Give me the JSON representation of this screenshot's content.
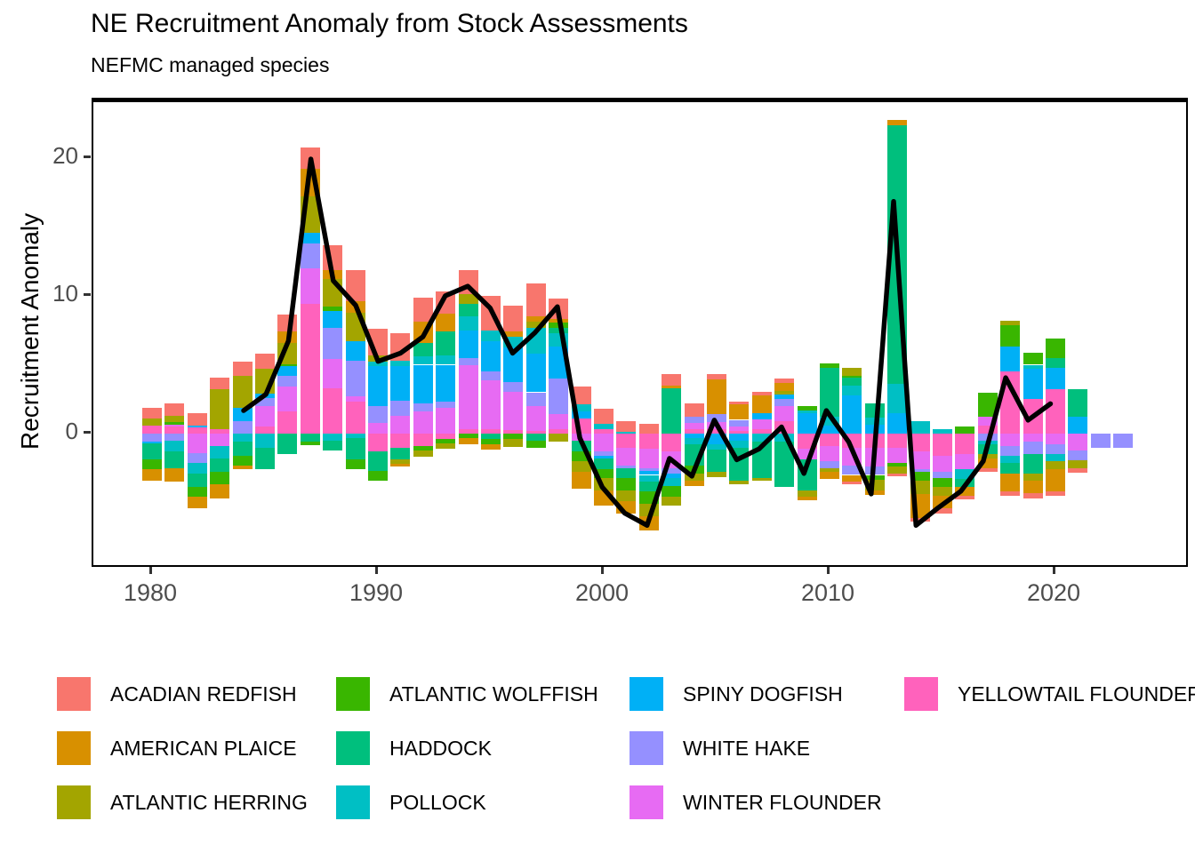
{
  "title": "NE Recruitment Anomaly from Stock Assessments",
  "subtitle": "NEFMC managed species",
  "y_axis": {
    "label": "Recruitment Anomaly",
    "ticks": [
      0,
      10,
      20
    ]
  },
  "x_axis": {
    "ticks": [
      1980,
      1990,
      2000,
      2010,
      2020
    ]
  },
  "legend": {
    "items": [
      {
        "label": "ACADIAN REDFISH",
        "color": "#F8766D"
      },
      {
        "label": "AMERICAN PLAICE",
        "color": "#D89000"
      },
      {
        "label": "ATLANTIC HERRING",
        "color": "#A3A500"
      },
      {
        "label": "ATLANTIC WOLFFISH",
        "color": "#39B600"
      },
      {
        "label": "HADDOCK",
        "color": "#00BF7D"
      },
      {
        "label": "POLLOCK",
        "color": "#00BFC4"
      },
      {
        "label": "SPINY DOGFISH",
        "color": "#00B0F6"
      },
      {
        "label": "WHITE HAKE",
        "color": "#9590FF"
      },
      {
        "label": "WINTER FLOUNDER",
        "color": "#E76BF3"
      },
      {
        "label": "YELLOWTAIL FLOUNDER",
        "color": "#FF62BC"
      }
    ]
  },
  "chart_data": {
    "type": "bar",
    "subtype": "stacked-diverging-with-line-overlay",
    "title": "NE Recruitment Anomaly from Stock Assessments",
    "xlabel": "",
    "ylabel": "Recruitment Anomaly",
    "xlim": [
      1977.4,
      2025.9
    ],
    "ylim": [
      -9.8,
      24.3
    ],
    "grid": false,
    "zero_line": true,
    "x": [
      1980,
      1981,
      1982,
      1983,
      1984,
      1985,
      1986,
      1987,
      1988,
      1989,
      1990,
      1991,
      1992,
      1993,
      1994,
      1995,
      1996,
      1997,
      1998,
      1999,
      2000,
      2001,
      2002,
      2003,
      2004,
      2005,
      2006,
      2007,
      2008,
      2009,
      2010,
      2011,
      2012,
      2013,
      2014,
      2015,
      2016,
      2017,
      2018,
      2019,
      2020,
      2021,
      2022,
      2023
    ],
    "series": [
      {
        "name": "ACADIAN REDFISH",
        "color": "#F8766D",
        "values": [
          0.8,
          0.9,
          0.9,
          0.8,
          1.0,
          1.1,
          1.2,
          1.6,
          1.8,
          2.3,
          1.9,
          2.0,
          1.8,
          1.6,
          1.8,
          2.5,
          1.9,
          2.4,
          1.45,
          1.3,
          1.1,
          0.8,
          0.7,
          0.8,
          1.0,
          0.35,
          0.25,
          0.25,
          0.3,
          0,
          0,
          -0.2,
          0,
          -0.2,
          -0.3,
          -0.4,
          -0.25,
          -0.25,
          -0.3,
          -0.4,
          -0.3,
          -0.35,
          0,
          0
        ]
      },
      {
        "name": "AMERICAN PLAICE",
        "color": "#D89000",
        "values": [
          -0.8,
          -1.0,
          -0.8,
          -1.0,
          -0.3,
          0,
          0.9,
          2.0,
          0.7,
          0.8,
          0,
          -0.2,
          1.5,
          1.3,
          -0.5,
          -0.4,
          0.35,
          0.4,
          0.3,
          -1.2,
          -1.1,
          -0.9,
          -1.0,
          0.2,
          -0.4,
          2.5,
          1.1,
          1.3,
          0.6,
          -0.3,
          -0.5,
          -0.5,
          -0.35,
          0.4,
          -1.7,
          -0.9,
          -0.6,
          -0.7,
          -1.3,
          -0.9,
          -1.6,
          0,
          0,
          0
        ]
      },
      {
        "name": "ATLANTIC HERRING",
        "color": "#A3A500",
        "values": [
          0.55,
          0.45,
          0,
          2.9,
          2.3,
          1.8,
          1.5,
          2.6,
          2.0,
          2.1,
          0.5,
          -0.3,
          -0.5,
          -0.4,
          0.7,
          0,
          -0.6,
          0.4,
          -0.6,
          -0.8,
          -0.9,
          -0.8,
          -0.9,
          -0.6,
          -0.5,
          -0.4,
          -0.3,
          -0.25,
          0.25,
          -0.45,
          -0.3,
          0.6,
          -0.75,
          -0.5,
          -1.0,
          -0.6,
          0,
          -0.3,
          0.3,
          -0.5,
          -0.6,
          -0.55,
          0,
          0
        ]
      },
      {
        "name": "ATLANTIC WOLFFISH",
        "color": "#39B600",
        "values": [
          -0.7,
          0.2,
          -0.7,
          -0.9,
          -0.7,
          0,
          0.15,
          -0.3,
          0.3,
          -0.7,
          -0.7,
          0,
          -0.3,
          -0.3,
          -0.3,
          -0.35,
          -0.4,
          -0.5,
          0.4,
          -0.7,
          -0.6,
          -0.9,
          -0.9,
          -0.8,
          -0.6,
          0,
          0,
          0,
          0,
          0.3,
          0.3,
          0.15,
          -0.35,
          -0.3,
          -0.6,
          -0.7,
          0.5,
          1.8,
          1.6,
          0.9,
          1.4,
          0,
          0,
          0
        ]
      },
      {
        "name": "HADDOCK",
        "color": "#00BF7D",
        "values": [
          -1.2,
          -1.2,
          -1.0,
          -1.0,
          -1.0,
          -1.6,
          -1.5,
          -0.55,
          -0.7,
          -1.6,
          -1.4,
          -0.9,
          1.0,
          1.7,
          0.9,
          -0.4,
          0,
          -0.5,
          0.35,
          -0.8,
          -0.8,
          -0.7,
          -0.7,
          3.3,
          -1.5,
          -1.6,
          -2.4,
          -2.6,
          -3.3,
          -2.2,
          3.6,
          0.55,
          1.05,
          18.8,
          0,
          0,
          -0.6,
          -0.7,
          -0.8,
          -1.4,
          0.7,
          2.0,
          0,
          0
        ]
      },
      {
        "name": "POLLOCK",
        "color": "#00BFC4",
        "values": [
          0,
          -0.8,
          -0.8,
          -0.9,
          -0.6,
          -1.0,
          0,
          0,
          -0.5,
          -0.3,
          0.3,
          0.4,
          0.6,
          0.7,
          1.0,
          0.8,
          0.8,
          1.9,
          1.0,
          0.5,
          0.35,
          0.1,
          -0.5,
          -0.6,
          -0.5,
          -0.4,
          -0.5,
          -0.6,
          -0.6,
          0.2,
          0.6,
          0.7,
          0.5,
          2.1,
          0.9,
          0.3,
          -0.7,
          -0.3,
          -0.5,
          0.3,
          -0.5,
          0,
          0,
          0
        ]
      },
      {
        "name": "SPINY DOGFISH",
        "color": "#00B0F6",
        "values": [
          -0.15,
          0,
          0.15,
          0,
          1.0,
          0.3,
          0.7,
          0.8,
          1.2,
          1.4,
          2.9,
          2.5,
          2.8,
          2.7,
          2.0,
          2.2,
          2.5,
          2.8,
          2.3,
          0.5,
          -0.2,
          0,
          -0.3,
          -0.3,
          -0.3,
          -0.75,
          -0.5,
          0.45,
          0.35,
          1.5,
          0.6,
          2.8,
          0.65,
          1.5,
          0,
          0,
          0,
          0,
          1.8,
          2.2,
          1.6,
          1.2,
          0,
          0
        ]
      },
      {
        "name": "WHITE HAKE",
        "color": "#9590FF",
        "values": [
          -0.55,
          -0.5,
          -0.7,
          0,
          0.9,
          0.6,
          0.8,
          1.8,
          2.3,
          2.6,
          1.2,
          1.1,
          0.6,
          0.4,
          0.5,
          0.6,
          0.7,
          1.0,
          2.55,
          0,
          -0.3,
          -0.2,
          -0.2,
          -0.4,
          0.4,
          0.6,
          0.5,
          0,
          0.5,
          0,
          -0.5,
          -0.7,
          -0.6,
          0,
          -0.2,
          -0.4,
          0,
          -0.5,
          -0.7,
          -0.9,
          -0.7,
          -0.75,
          -1.0,
          -1.0
        ]
      },
      {
        "name": "WINTER FLOUNDER",
        "color": "#E76BF3",
        "values": [
          0,
          0.15,
          -1.4,
          -0.9,
          0,
          1.5,
          1.8,
          2.6,
          2.1,
          0.4,
          0.8,
          1.3,
          1.6,
          1.9,
          4.7,
          3.6,
          2.8,
          1.8,
          1.15,
          -0.5,
          -1.3,
          -1.3,
          -1.4,
          -1.2,
          0.5,
          0.55,
          0.3,
          0.75,
          1.1,
          -0.8,
          -1.1,
          -1.3,
          -1.4,
          -1.1,
          -1.3,
          -1.2,
          -1.1,
          0.6,
          -0.9,
          -0.6,
          -0.8,
          -1.2,
          0,
          0
        ]
      },
      {
        "name": "YELLOWTAIL FLOUNDER",
        "color": "#FF62BC",
        "values": [
          0.55,
          0.5,
          0.45,
          0.35,
          0,
          0.5,
          1.6,
          9.4,
          3.3,
          2.3,
          -1.3,
          -1.0,
          -0.9,
          -0.4,
          0.3,
          0.3,
          0.25,
          0.2,
          0.3,
          1.1,
          0.35,
          -1.0,
          -1.1,
          -1.3,
          0.3,
          0.3,
          0.2,
          0.3,
          0.9,
          -1.1,
          -0.9,
          -1.0,
          -1.0,
          -1.0,
          -1.3,
          -1.6,
          -1.5,
          0.6,
          4.5,
          2.5,
          3.2,
          0,
          0,
          0
        ]
      }
    ],
    "line": {
      "color": "#000000",
      "x": [
        1984,
        1985,
        1986,
        1987,
        1988,
        1989,
        1990,
        1991,
        1992,
        1993,
        1994,
        1995,
        1996,
        1997,
        1998,
        1999,
        2000,
        2001,
        2002,
        2003,
        2004,
        2005,
        2006,
        2007,
        2008,
        2009,
        2010,
        2011,
        2012,
        2013,
        2014,
        2015,
        2016,
        2017,
        2018,
        2019,
        2020
      ],
      "values": [
        1.5,
        2.7,
        6.6,
        19.9,
        11.0,
        9.2,
        5.1,
        5.7,
        6.9,
        9.9,
        10.6,
        9.0,
        5.7,
        7.2,
        9.1,
        -0.5,
        -4.1,
        -6.0,
        -6.9,
        -2.0,
        -3.3,
        0.8,
        -2.1,
        -1.3,
        0.3,
        -3.1,
        1.5,
        -0.8,
        -4.6,
        16.8,
        -6.9,
        -5.6,
        -4.4,
        -2.2,
        3.9,
        0.8,
        2.0
      ]
    }
  }
}
